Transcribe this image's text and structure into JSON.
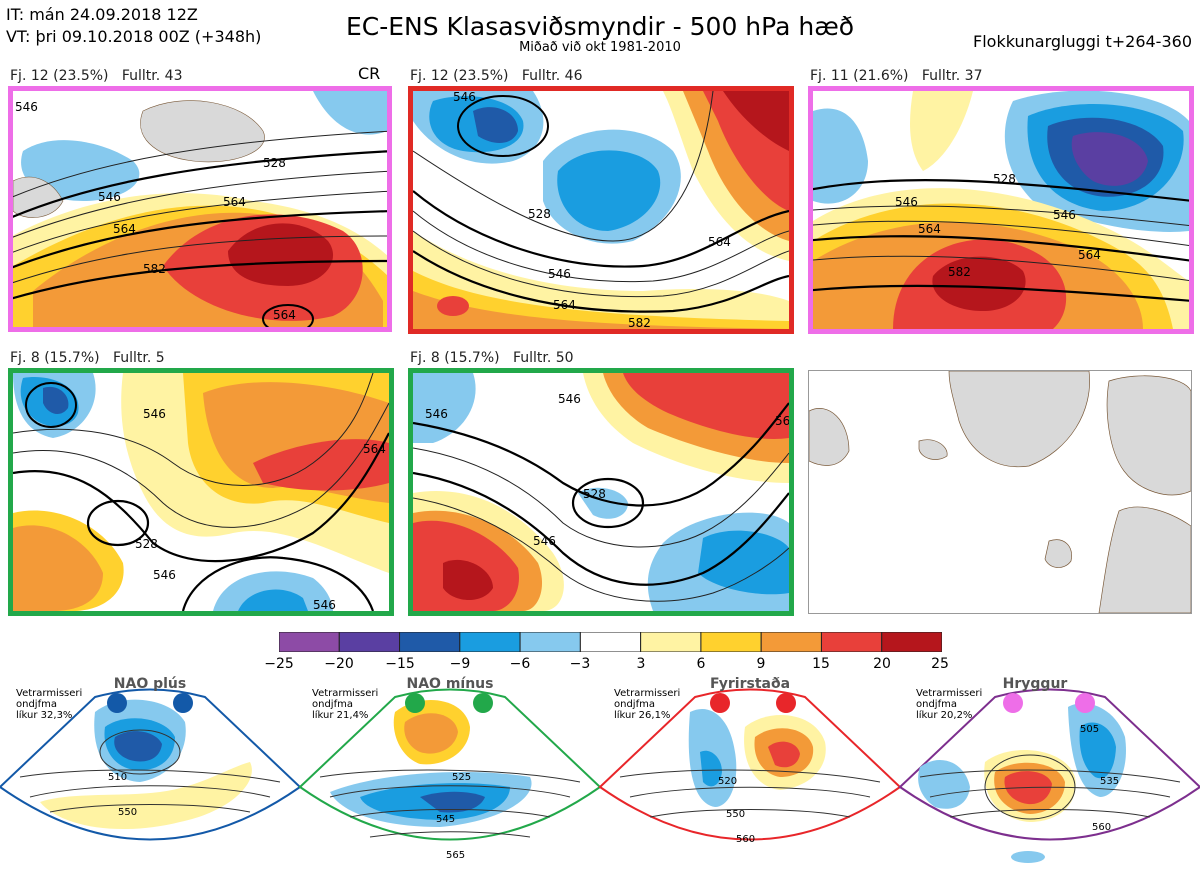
{
  "header": {
    "it": "IT: mán 24.09.2018 12Z",
    "vt": "VT: þri 09.10.2018 00Z  (+348h)",
    "title": "EC-ENS Klasasviðsmyndir - 500 hPa hæð",
    "subtitle": "Miðað við okt 1981-2010",
    "window": "Flokkunargluggi t+264-360"
  },
  "panels": [
    {
      "label": "Fj. 12 (23.5%)   Fulltr. 43",
      "border": "#ee6ee8",
      "tag": "CR",
      "contours": [
        "546",
        "528",
        "546",
        "564",
        "564",
        "582",
        "564"
      ]
    },
    {
      "label": "Fj. 12 (23.5%)   Fulltr. 46",
      "border": "#e02a25",
      "contours": [
        "528",
        "546",
        "564",
        "546",
        "564",
        "582"
      ]
    },
    {
      "label": "Fj. 11 (21.6%)   Fulltr. 37",
      "border": "#ee6ee8",
      "contours": [
        "528",
        "546",
        "564",
        "546",
        "564",
        "582"
      ]
    },
    {
      "label": "Fj. 8 (15.7%)   Fulltr. 5",
      "border": "#22a84a",
      "contours": [
        "546",
        "528",
        "564",
        "546",
        "546"
      ]
    },
    {
      "label": "Fj. 8 (15.7%)   Fulltr. 50",
      "border": "#22a84a",
      "contours": [
        "546",
        "528",
        "546",
        "546",
        "56"
      ]
    },
    {
      "label": "",
      "border": "#999999",
      "contours": []
    }
  ],
  "colorbar": {
    "labels": [
      "−25",
      "−20",
      "−15",
      "−9",
      "−6",
      "−3",
      "3",
      "6",
      "9",
      "15",
      "20",
      "25"
    ],
    "colors": [
      "#8d4ba6",
      "#5a3fa2",
      "#1f5aa8",
      "#1a9de0",
      "#86c9ee",
      "#ffffff",
      "#fff3a3",
      "#ffd12e",
      "#f39a38",
      "#e8403a",
      "#b5161c"
    ]
  },
  "regimes": [
    {
      "title": "NAO plús",
      "note1": "Vetrarmisseri",
      "note2": "ondjfma",
      "note3": "líkur 32,3%",
      "dot": "#1359a8",
      "line": "#1359a8",
      "contours": [
        "510",
        "550"
      ]
    },
    {
      "title": "NAO mínus",
      "note1": "Vetrarmisseri",
      "note2": "ondjfma",
      "note3": "líkur 21,4%",
      "dot": "#22a84a",
      "line": "#22a84a",
      "contours": [
        "525",
        "545",
        "565"
      ]
    },
    {
      "title": "Fyrirstaða",
      "note1": "Vetrarmisseri",
      "note2": "ondjfma",
      "note3": "líkur 26,1%",
      "dot": "#e8262a",
      "line": "#e8262a",
      "contours": [
        "520",
        "550",
        "560"
      ]
    },
    {
      "title": "Hryggur",
      "note1": "Vetrarmisseri",
      "note2": "ondjfma",
      "note3": "líkur 20,2%",
      "dot": "#ee6ee8",
      "line": "#7d2f8e",
      "contours": [
        "505",
        "535",
        "560"
      ]
    }
  ]
}
